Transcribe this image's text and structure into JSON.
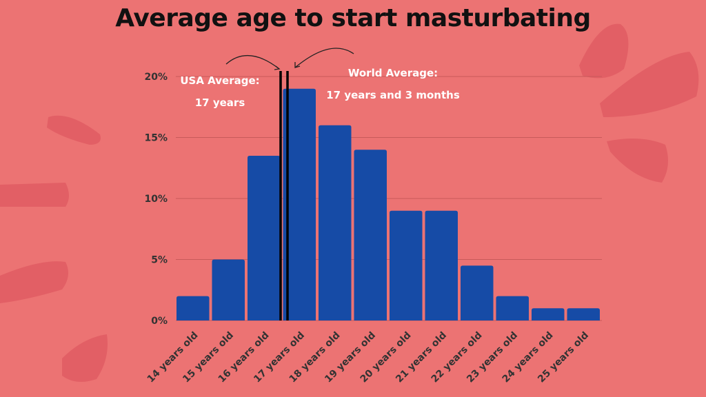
{
  "chart_data": {
    "type": "bar",
    "title": "Average age to start masturbating",
    "xlabel": "",
    "ylabel": "",
    "categories": [
      "14 years old",
      "15 years old",
      "16 years old",
      "17 years old",
      "18 years old",
      "19 years old",
      "20 years old",
      "21 years old",
      "22 years old",
      "23 years old",
      "24 years old",
      "25 years old"
    ],
    "values": [
      2,
      5,
      13.5,
      19,
      16,
      14,
      9,
      9,
      4.5,
      2,
      1,
      1
    ],
    "ylim": [
      0,
      20
    ],
    "yticks": [
      0,
      5,
      10,
      15,
      20
    ],
    "ytick_labels": [
      "0%",
      "5%",
      "10%",
      "15%",
      "20%"
    ],
    "grid": true,
    "reference_lines": [
      {
        "label": "USA Average:",
        "value_label": "17 years",
        "x_age": 17.0
      },
      {
        "label": "World Average:",
        "value_label": "17 years and 3 months",
        "x_age": 17.25
      }
    ]
  },
  "colors": {
    "background": "#ec7373",
    "bar": "#164ba6",
    "grid": "#c85a5a",
    "line": "#000000"
  }
}
